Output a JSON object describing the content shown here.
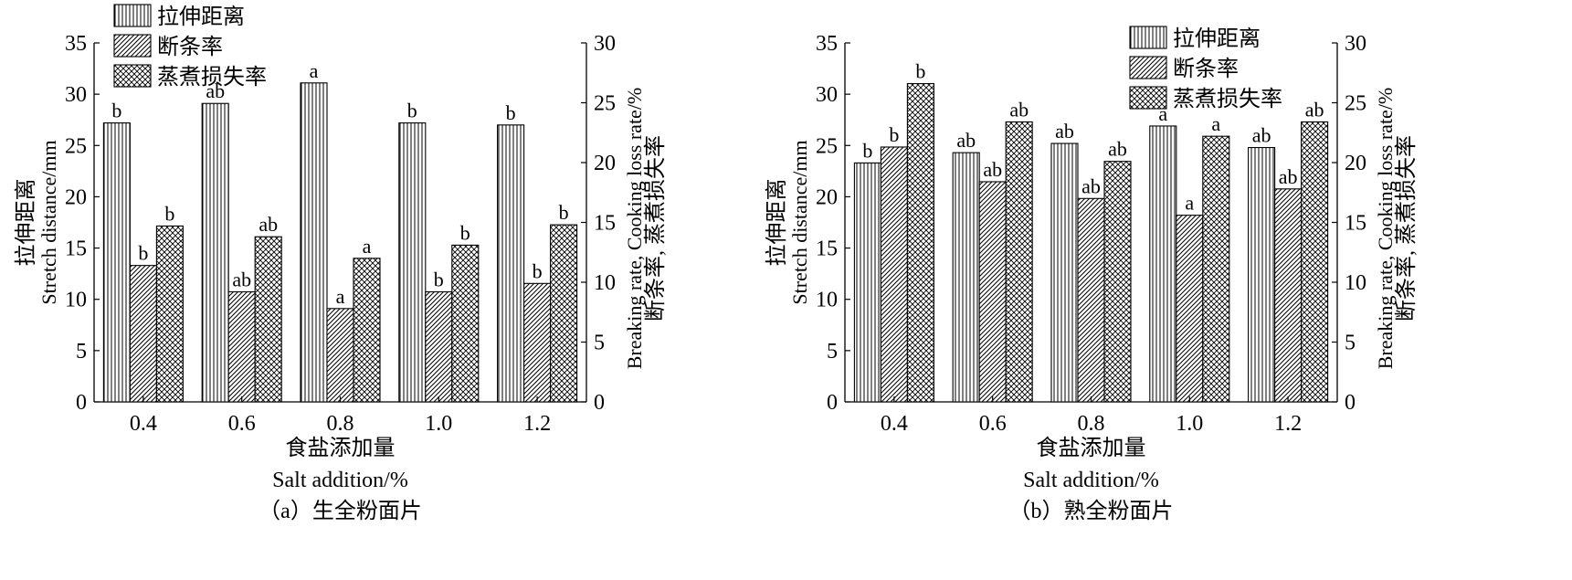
{
  "colors": {
    "ink": "#000000",
    "background": "#ffffff"
  },
  "legend_patterns": [
    "vertical-lines",
    "diagonal-hatch",
    "cross-hatch"
  ],
  "chart_data": [
    {
      "type": "bar",
      "panel_caption": "（a）生全粉面片",
      "xlabel_cn": "食盐添加量",
      "xlabel_en": "Salt addition/%",
      "ylabel_left_cn": "拉伸距离",
      "ylabel_left_en": "Stretch distance/mm",
      "ylabel_right_en": "Breaking rate, Cooking loss rate/%",
      "ylabel_right_cn": "断条率, 蒸煮损失率",
      "categories": [
        "0.4",
        "0.6",
        "0.8",
        "1.0",
        "1.2"
      ],
      "ylim_left": [
        0,
        35
      ],
      "yticks_left": [
        0,
        5,
        10,
        15,
        20,
        25,
        30,
        35
      ],
      "ylim_right": [
        0,
        30
      ],
      "yticks_right": [
        0,
        5,
        10,
        15,
        20,
        25,
        30
      ],
      "legend_position": "top-left",
      "series": [
        {
          "name": "拉伸距离",
          "axis": "left",
          "pattern": "vertical-lines",
          "values": [
            27.2,
            29.1,
            31.1,
            27.2,
            27.0
          ],
          "labels": [
            "b",
            "ab",
            "a",
            "b",
            "b"
          ]
        },
        {
          "name": "断条率",
          "axis": "right",
          "pattern": "diagonal-hatch",
          "values": [
            11.4,
            9.2,
            7.8,
            9.2,
            9.9
          ],
          "labels": [
            "b",
            "ab",
            "a",
            "b",
            "b"
          ]
        },
        {
          "name": "蒸煮损失率",
          "axis": "right",
          "pattern": "cross-hatch",
          "values": [
            14.7,
            13.8,
            12.0,
            13.1,
            14.8
          ],
          "labels": [
            "b",
            "ab",
            "a",
            "b",
            "b"
          ]
        }
      ]
    },
    {
      "type": "bar",
      "panel_caption": "（b）熟全粉面片",
      "xlabel_cn": "食盐添加量",
      "xlabel_en": "Salt addition/%",
      "ylabel_left_cn": "拉伸距离",
      "ylabel_left_en": "Stretch distance/mm",
      "ylabel_right_en": "Breaking rate, Cooking loss rate/%",
      "ylabel_right_cn": "断条率, 蒸煮损失率",
      "categories": [
        "0.4",
        "0.6",
        "0.8",
        "1.0",
        "1.2"
      ],
      "ylim_left": [
        0,
        35
      ],
      "yticks_left": [
        0,
        5,
        10,
        15,
        20,
        25,
        30,
        35
      ],
      "ylim_right": [
        0,
        30
      ],
      "yticks_right": [
        0,
        5,
        10,
        15,
        20,
        25,
        30
      ],
      "legend_position": "top-right",
      "series": [
        {
          "name": "拉伸距离",
          "axis": "left",
          "pattern": "vertical-lines",
          "values": [
            23.3,
            24.3,
            25.2,
            26.9,
            24.8
          ],
          "labels": [
            "b",
            "ab",
            "ab",
            "a",
            "ab"
          ]
        },
        {
          "name": "断条率",
          "axis": "right",
          "pattern": "diagonal-hatch",
          "values": [
            21.3,
            18.4,
            17.0,
            15.6,
            17.8
          ],
          "labels": [
            "b",
            "ab",
            "ab",
            "a",
            "ab"
          ]
        },
        {
          "name": "蒸煮损失率",
          "axis": "right",
          "pattern": "cross-hatch",
          "values": [
            26.6,
            23.4,
            20.1,
            22.2,
            23.4
          ],
          "labels": [
            "b",
            "ab",
            "ab",
            "a",
            "ab"
          ]
        }
      ]
    }
  ]
}
